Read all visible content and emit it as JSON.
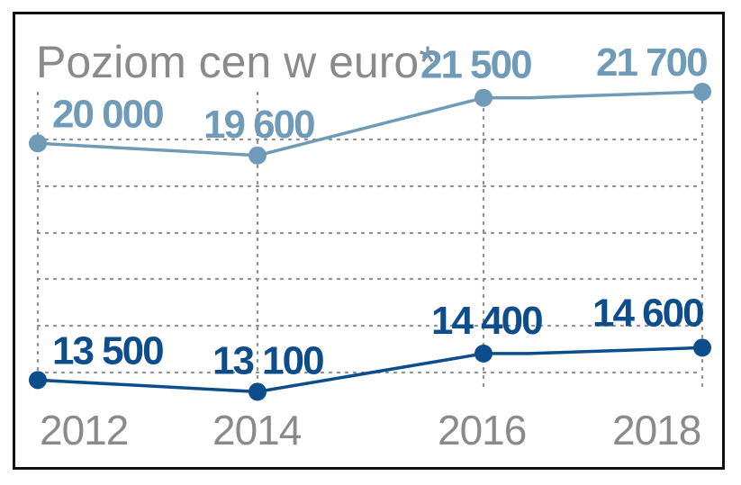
{
  "chart_data": {
    "type": "line",
    "title": "Poziom cen w euro*",
    "xlabel": "",
    "ylabel": "",
    "categories": [
      "2012",
      "2014",
      "2016",
      "2018"
    ],
    "series": [
      {
        "values": [
          20000,
          19600,
          21500,
          21700
        ],
        "labels": [
          "20 000",
          "19 600",
          "21 500",
          "21 700"
        ],
        "color": "#6f9ab8"
      },
      {
        "values": [
          13500,
          13100,
          14400,
          14600
        ],
        "labels": [
          "13 500",
          "13 100",
          "14 400",
          "14 600"
        ],
        "color": "#0d4d8c"
      }
    ],
    "grid": true,
    "legend": "none"
  }
}
